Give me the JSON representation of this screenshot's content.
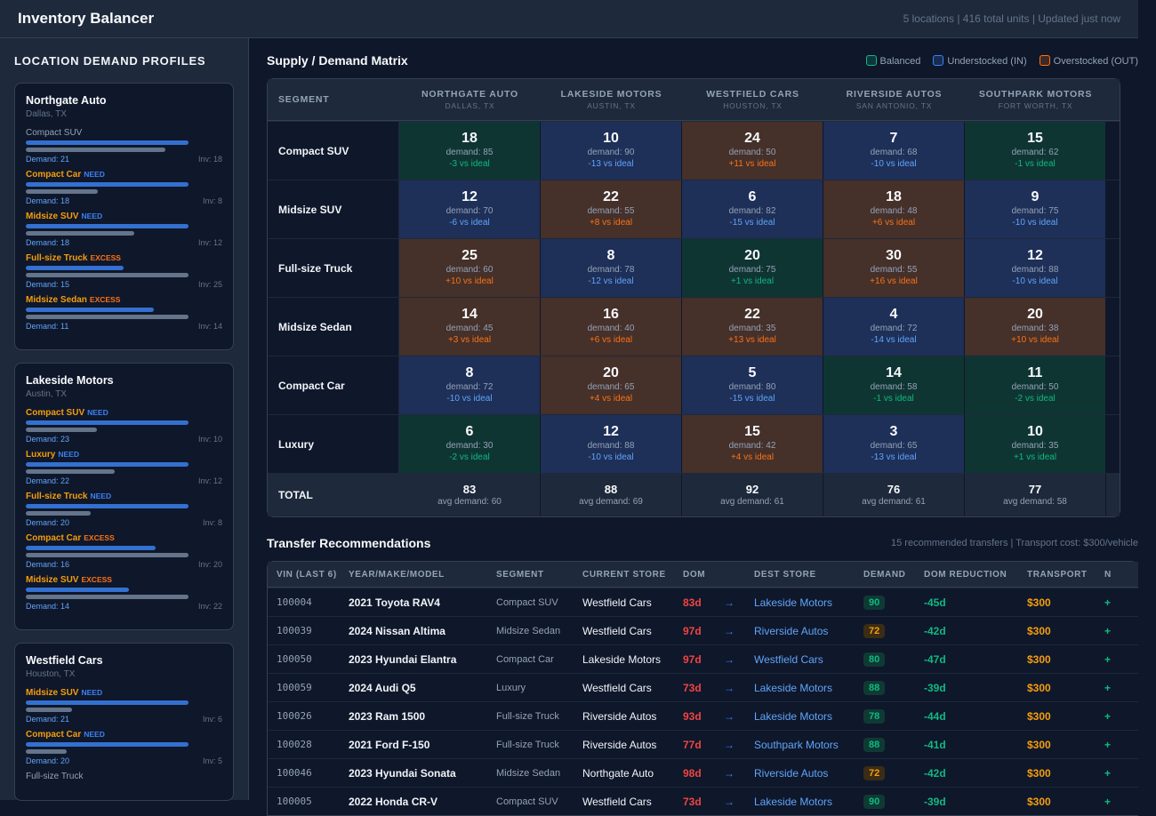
{
  "header": {
    "title": "Inventory Balancer",
    "status": "5 locations | 416 total units | Updated just now"
  },
  "sidebar": {
    "title": "LOCATION DEMAND PROFILES",
    "demand_prefix": "Demand: ",
    "inv_prefix": "Inv: ",
    "locations": [
      {
        "name": "Northgate Auto",
        "loc": "Dallas, TX",
        "segments": [
          {
            "label": "Compact SUV",
            "tag": "",
            "demand": 21,
            "inv": 18
          },
          {
            "label": "Compact Car",
            "tag": "NEED",
            "demand": 18,
            "inv": 8
          },
          {
            "label": "Midsize SUV",
            "tag": "NEED",
            "demand": 18,
            "inv": 12
          },
          {
            "label": "Full-size Truck",
            "tag": "EXCESS",
            "demand": 15,
            "inv": 25
          },
          {
            "label": "Midsize Sedan",
            "tag": "EXCESS",
            "demand": 11,
            "inv": 14
          }
        ]
      },
      {
        "name": "Lakeside Motors",
        "loc": "Austin, TX",
        "segments": [
          {
            "label": "Compact SUV",
            "tag": "NEED",
            "demand": 23,
            "inv": 10
          },
          {
            "label": "Luxury",
            "tag": "NEED",
            "demand": 22,
            "inv": 12
          },
          {
            "label": "Full-size Truck",
            "tag": "NEED",
            "demand": 20,
            "inv": 8
          },
          {
            "label": "Compact Car",
            "tag": "EXCESS",
            "demand": 16,
            "inv": 20
          },
          {
            "label": "Midsize SUV",
            "tag": "EXCESS",
            "demand": 14,
            "inv": 22
          }
        ]
      },
      {
        "name": "Westfield Cars",
        "loc": "Houston, TX",
        "segments": [
          {
            "label": "Midsize SUV",
            "tag": "NEED",
            "demand": 21,
            "inv": 6
          },
          {
            "label": "Compact Car",
            "tag": "NEED",
            "demand": 20,
            "inv": 5
          },
          {
            "label": "Full-size Truck",
            "tag": ""
          }
        ]
      }
    ]
  },
  "matrix": {
    "title": "Supply / Demand Matrix",
    "legend": [
      {
        "label": "Balanced",
        "color": "#10b981"
      },
      {
        "label": "Understocked (IN)",
        "color": "#3b82f6"
      },
      {
        "label": "Overstocked (OUT)",
        "color": "#f97316"
      }
    ],
    "corner": "SEGMENT",
    "columns": [
      {
        "name": "NORTHGATE AUTO",
        "loc": "DALLAS, TX"
      },
      {
        "name": "LAKESIDE MOTORS",
        "loc": "AUSTIN, TX"
      },
      {
        "name": "WESTFIELD CARS",
        "loc": "HOUSTON, TX"
      },
      {
        "name": "RIVERSIDE AUTOS",
        "loc": "SAN ANTONIO, TX"
      },
      {
        "name": "SOUTHPARK MOTORS",
        "loc": "FORT WORTH, TX"
      }
    ],
    "rows": [
      {
        "segment": "Compact SUV",
        "cells": [
          {
            "inv": "18",
            "demand": "demand: 85",
            "diff": "-3 vs ideal",
            "status": "balanced"
          },
          {
            "inv": "10",
            "demand": "demand: 90",
            "diff": "-13 vs ideal",
            "status": "under"
          },
          {
            "inv": "24",
            "demand": "demand: 50",
            "diff": "+11 vs ideal",
            "status": "over"
          },
          {
            "inv": "7",
            "demand": "demand: 68",
            "diff": "-10 vs ideal",
            "status": "under"
          },
          {
            "inv": "15",
            "demand": "demand: 62",
            "diff": "-1 vs ideal",
            "status": "balanced"
          }
        ]
      },
      {
        "segment": "Midsize SUV",
        "cells": [
          {
            "inv": "12",
            "demand": "demand: 70",
            "diff": "-6 vs ideal",
            "status": "under"
          },
          {
            "inv": "22",
            "demand": "demand: 55",
            "diff": "+8 vs ideal",
            "status": "over"
          },
          {
            "inv": "6",
            "demand": "demand: 82",
            "diff": "-15 vs ideal",
            "status": "under"
          },
          {
            "inv": "18",
            "demand": "demand: 48",
            "diff": "+6 vs ideal",
            "status": "over"
          },
          {
            "inv": "9",
            "demand": "demand: 75",
            "diff": "-10 vs ideal",
            "status": "under"
          }
        ]
      },
      {
        "segment": "Full-size Truck",
        "cells": [
          {
            "inv": "25",
            "demand": "demand: 60",
            "diff": "+10 vs ideal",
            "status": "over"
          },
          {
            "inv": "8",
            "demand": "demand: 78",
            "diff": "-12 vs ideal",
            "status": "under"
          },
          {
            "inv": "20",
            "demand": "demand: 75",
            "diff": "+1 vs ideal",
            "status": "balanced"
          },
          {
            "inv": "30",
            "demand": "demand: 55",
            "diff": "+16 vs ideal",
            "status": "over"
          },
          {
            "inv": "12",
            "demand": "demand: 88",
            "diff": "-10 vs ideal",
            "status": "under"
          }
        ]
      },
      {
        "segment": "Midsize Sedan",
        "cells": [
          {
            "inv": "14",
            "demand": "demand: 45",
            "diff": "+3 vs ideal",
            "status": "over"
          },
          {
            "inv": "16",
            "demand": "demand: 40",
            "diff": "+6 vs ideal",
            "status": "over"
          },
          {
            "inv": "22",
            "demand": "demand: 35",
            "diff": "+13 vs ideal",
            "status": "over"
          },
          {
            "inv": "4",
            "demand": "demand: 72",
            "diff": "-14 vs ideal",
            "status": "under"
          },
          {
            "inv": "20",
            "demand": "demand: 38",
            "diff": "+10 vs ideal",
            "status": "over"
          }
        ]
      },
      {
        "segment": "Compact Car",
        "cells": [
          {
            "inv": "8",
            "demand": "demand: 72",
            "diff": "-10 vs ideal",
            "status": "under"
          },
          {
            "inv": "20",
            "demand": "demand: 65",
            "diff": "+4 vs ideal",
            "status": "over"
          },
          {
            "inv": "5",
            "demand": "demand: 80",
            "diff": "-15 vs ideal",
            "status": "under"
          },
          {
            "inv": "14",
            "demand": "demand: 58",
            "diff": "-1 vs ideal",
            "status": "balanced"
          },
          {
            "inv": "11",
            "demand": "demand: 50",
            "diff": "-2 vs ideal",
            "status": "balanced"
          }
        ]
      },
      {
        "segment": "Luxury",
        "cells": [
          {
            "inv": "6",
            "demand": "demand: 30",
            "diff": "-2 vs ideal",
            "status": "balanced"
          },
          {
            "inv": "12",
            "demand": "demand: 88",
            "diff": "-10 vs ideal",
            "status": "under"
          },
          {
            "inv": "15",
            "demand": "demand: 42",
            "diff": "+4 vs ideal",
            "status": "over"
          },
          {
            "inv": "3",
            "demand": "demand: 65",
            "diff": "-13 vs ideal",
            "status": "under"
          },
          {
            "inv": "10",
            "demand": "demand: 35",
            "diff": "+1 vs ideal",
            "status": "balanced"
          }
        ]
      }
    ],
    "total": {
      "label": "TOTAL",
      "cells": [
        {
          "inv": "83",
          "demand": "avg demand: 60"
        },
        {
          "inv": "88",
          "demand": "avg demand: 69"
        },
        {
          "inv": "92",
          "demand": "avg demand: 61"
        },
        {
          "inv": "76",
          "demand": "avg demand: 61"
        },
        {
          "inv": "77",
          "demand": "avg demand: 58"
        }
      ]
    }
  },
  "transfers": {
    "title": "Transfer Recommendations",
    "stats": "15 recommended transfers | Transport cost: $300/vehicle",
    "columns": [
      "VIN (LAST 6)",
      "YEAR/MAKE/MODEL",
      "SEGMENT",
      "CURRENT STORE",
      "DOM",
      "",
      "DEST STORE",
      "DEMAND",
      "DOM REDUCTION",
      "TRANSPORT",
      "N"
    ],
    "rows": [
      {
        "vin": "100004",
        "model": "2021 Toyota RAV4",
        "segment": "Compact SUV",
        "current": "Westfield Cars",
        "dom": "83d",
        "dest": "Lakeside Motors",
        "demand": "90",
        "reduction": "-45d",
        "transport": "$300",
        "net": "+"
      },
      {
        "vin": "100039",
        "model": "2024 Nissan Altima",
        "segment": "Midsize Sedan",
        "current": "Westfield Cars",
        "dom": "97d",
        "dest": "Riverside Autos",
        "demand": "72",
        "reduction": "-42d",
        "transport": "$300",
        "net": "+"
      },
      {
        "vin": "100050",
        "model": "2023 Hyundai Elantra",
        "segment": "Compact Car",
        "current": "Lakeside Motors",
        "dom": "97d",
        "dest": "Westfield Cars",
        "demand": "80",
        "reduction": "-47d",
        "transport": "$300",
        "net": "+"
      },
      {
        "vin": "100059",
        "model": "2024 Audi Q5",
        "segment": "Luxury",
        "current": "Westfield Cars",
        "dom": "73d",
        "dest": "Lakeside Motors",
        "demand": "88",
        "reduction": "-39d",
        "transport": "$300",
        "net": "+"
      },
      {
        "vin": "100026",
        "model": "2023 Ram 1500",
        "segment": "Full-size Truck",
        "current": "Riverside Autos",
        "dom": "93d",
        "dest": "Lakeside Motors",
        "demand": "78",
        "reduction": "-44d",
        "transport": "$300",
        "net": "+"
      },
      {
        "vin": "100028",
        "model": "2021 Ford F-150",
        "segment": "Full-size Truck",
        "current": "Riverside Autos",
        "dom": "77d",
        "dest": "Southpark Motors",
        "demand": "88",
        "reduction": "-41d",
        "transport": "$300",
        "net": "+"
      },
      {
        "vin": "100046",
        "model": "2023 Hyundai Sonata",
        "segment": "Midsize Sedan",
        "current": "Northgate Auto",
        "dom": "98d",
        "dest": "Riverside Autos",
        "demand": "72",
        "reduction": "-42d",
        "transport": "$300",
        "net": "+"
      },
      {
        "vin": "100005",
        "model": "2022 Honda CR-V",
        "segment": "Compact SUV",
        "current": "Westfield Cars",
        "dom": "73d",
        "dest": "Lakeside Motors",
        "demand": "90",
        "reduction": "-39d",
        "transport": "$300",
        "net": "+"
      }
    ]
  }
}
